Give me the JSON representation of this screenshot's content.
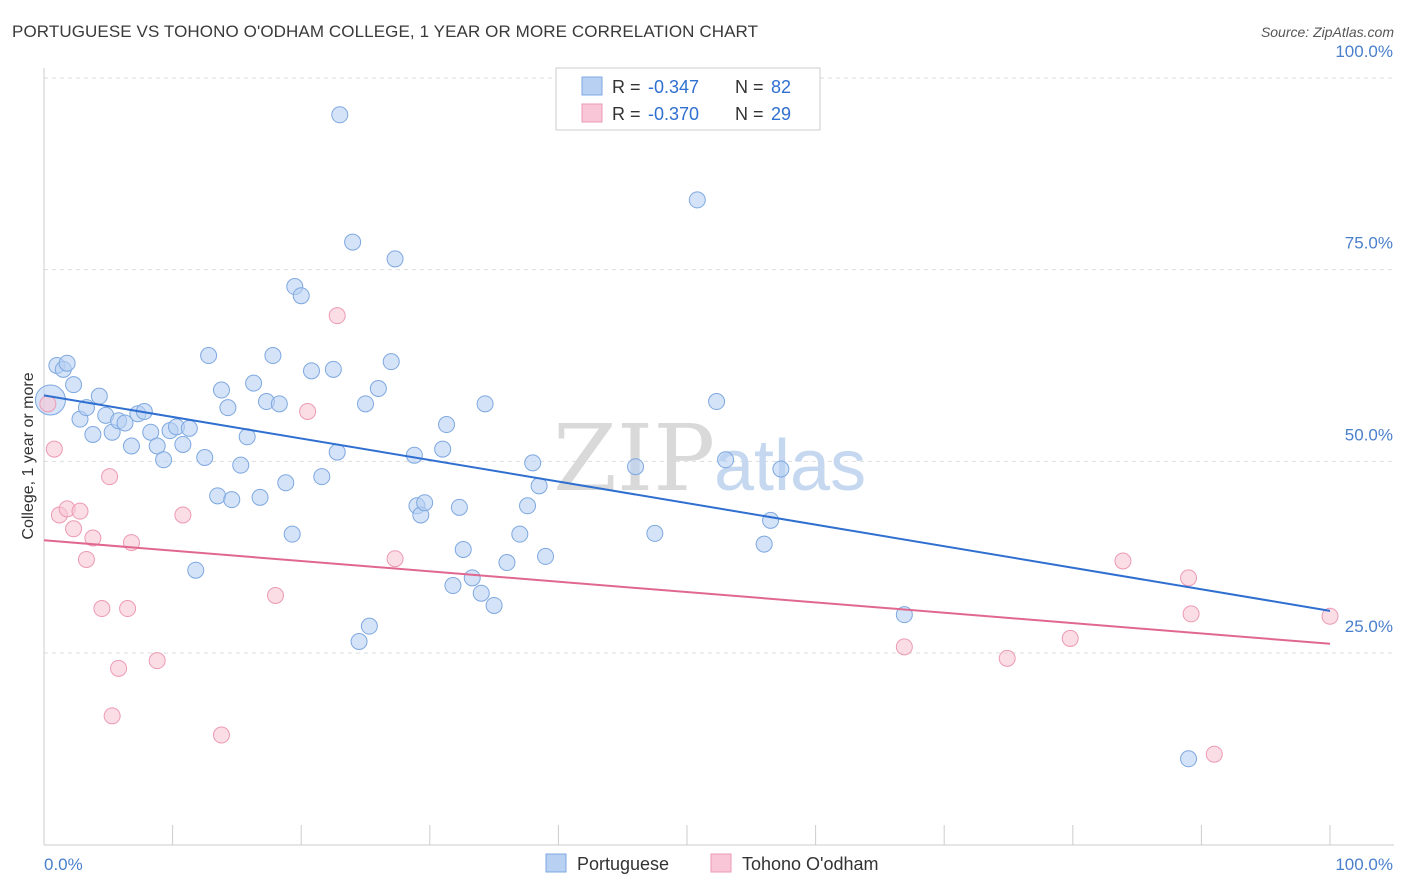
{
  "title": "PORTUGUESE VS TOHONO O'ODHAM COLLEGE, 1 YEAR OR MORE CORRELATION CHART",
  "source": "Source: ZipAtlas.com",
  "watermark": {
    "zip": "ZIP",
    "atlas": "atlas"
  },
  "colors": {
    "blue_fill": "#b8d1f3",
    "blue_stroke": "#7ea8e0",
    "blue_line": "#2f6fd0",
    "pink_fill": "#f8c6d6",
    "pink_stroke": "#ec9ab4",
    "pink_line": "#e0688f",
    "tick": "#4a7fcc",
    "grid": "#dddddd"
  },
  "legend": {
    "rows": [
      {
        "r_label": "R =",
        "r_value": "-0.347",
        "n_label": "N =",
        "n_value": "82"
      },
      {
        "r_label": "R =",
        "r_value": "-0.370",
        "n_label": "N =",
        "n_value": "29"
      }
    ]
  },
  "bottom_legend": [
    "Portuguese",
    "Tohono O'odham"
  ],
  "chart_data": {
    "type": "scatter",
    "title": "PORTUGUESE VS TOHONO O'ODHAM COLLEGE, 1 YEAR OR MORE CORRELATION CHART",
    "xlabel": "",
    "ylabel": "College, 1 year or more",
    "xlim": [
      0,
      100
    ],
    "ylim": [
      0,
      102
    ],
    "x_tick_labels": [
      "0.0%",
      "100.0%"
    ],
    "y_ticks": [
      25,
      50,
      75,
      100
    ],
    "y_tick_labels": [
      "25.0%",
      "50.0%",
      "75.0%",
      "100.0%"
    ],
    "grid": true,
    "legend_position": "top-center",
    "series": [
      {
        "name": "Portuguese",
        "trend": {
          "x": [
            0,
            100
          ],
          "y": [
            58.6,
            30.5
          ]
        },
        "points": [
          [
            0.5,
            58.0
          ],
          [
            1.0,
            62.5
          ],
          [
            1.5,
            62.0
          ],
          [
            1.8,
            62.8
          ],
          [
            2.3,
            60.0
          ],
          [
            2.8,
            55.5
          ],
          [
            3.3,
            57.0
          ],
          [
            3.8,
            53.5
          ],
          [
            4.3,
            58.5
          ],
          [
            4.8,
            56.0
          ],
          [
            5.3,
            53.8
          ],
          [
            5.8,
            55.3
          ],
          [
            6.3,
            55.0
          ],
          [
            6.8,
            52.0
          ],
          [
            7.3,
            56.2
          ],
          [
            7.8,
            56.5
          ],
          [
            8.3,
            53.8
          ],
          [
            8.8,
            52.0
          ],
          [
            9.3,
            50.2
          ],
          [
            9.8,
            54.0
          ],
          [
            10.3,
            54.5
          ],
          [
            10.8,
            52.2
          ],
          [
            11.3,
            54.3
          ],
          [
            11.8,
            35.8
          ],
          [
            12.5,
            50.5
          ],
          [
            12.8,
            63.8
          ],
          [
            13.5,
            45.5
          ],
          [
            13.8,
            59.3
          ],
          [
            14.3,
            57.0
          ],
          [
            14.6,
            45.0
          ],
          [
            15.3,
            49.5
          ],
          [
            15.8,
            53.2
          ],
          [
            16.3,
            60.2
          ],
          [
            16.8,
            45.3
          ],
          [
            17.3,
            57.8
          ],
          [
            17.8,
            63.8
          ],
          [
            18.3,
            57.5
          ],
          [
            18.8,
            47.2
          ],
          [
            19.3,
            40.5
          ],
          [
            19.5,
            72.8
          ],
          [
            20.0,
            71.6
          ],
          [
            20.8,
            61.8
          ],
          [
            21.6,
            48.0
          ],
          [
            22.5,
            62.0
          ],
          [
            22.8,
            51.2
          ],
          [
            23.0,
            95.2
          ],
          [
            24.0,
            78.6
          ],
          [
            24.5,
            26.5
          ],
          [
            25.0,
            57.5
          ],
          [
            25.3,
            28.5
          ],
          [
            26.0,
            59.5
          ],
          [
            27.0,
            63.0
          ],
          [
            27.3,
            76.4
          ],
          [
            28.8,
            50.8
          ],
          [
            29.0,
            44.2
          ],
          [
            29.3,
            43.0
          ],
          [
            29.6,
            44.6
          ],
          [
            31.0,
            51.6
          ],
          [
            31.3,
            54.8
          ],
          [
            31.8,
            33.8
          ],
          [
            32.3,
            44.0
          ],
          [
            32.6,
            38.5
          ],
          [
            33.3,
            34.8
          ],
          [
            34.0,
            32.8
          ],
          [
            34.3,
            57.5
          ],
          [
            35.0,
            31.2
          ],
          [
            36.0,
            36.8
          ],
          [
            37.0,
            40.5
          ],
          [
            37.6,
            44.2
          ],
          [
            38.0,
            49.8
          ],
          [
            38.5,
            46.8
          ],
          [
            39.0,
            37.6
          ],
          [
            46.0,
            49.3
          ],
          [
            47.5,
            40.6
          ],
          [
            50.8,
            84.1
          ],
          [
            52.3,
            57.8
          ],
          [
            53.0,
            50.2
          ],
          [
            56.0,
            39.2
          ],
          [
            56.5,
            42.3
          ],
          [
            57.3,
            49.0
          ],
          [
            66.9,
            30.0
          ],
          [
            89.0,
            11.2
          ]
        ]
      },
      {
        "name": "Tohono O'odham",
        "trend": {
          "x": [
            0,
            100
          ],
          "y": [
            39.7,
            26.2
          ]
        },
        "points": [
          [
            0.3,
            57.5
          ],
          [
            0.8,
            51.6
          ],
          [
            1.2,
            43.0
          ],
          [
            1.8,
            43.8
          ],
          [
            2.3,
            41.2
          ],
          [
            2.8,
            43.5
          ],
          [
            3.3,
            37.2
          ],
          [
            3.8,
            40.0
          ],
          [
            4.5,
            30.8
          ],
          [
            5.1,
            48.0
          ],
          [
            5.3,
            16.8
          ],
          [
            5.8,
            23.0
          ],
          [
            6.5,
            30.8
          ],
          [
            6.8,
            39.4
          ],
          [
            8.8,
            24.0
          ],
          [
            10.8,
            43.0
          ],
          [
            13.8,
            14.3
          ],
          [
            18.0,
            32.5
          ],
          [
            20.5,
            56.5
          ],
          [
            22.8,
            69.0
          ],
          [
            27.3,
            37.3
          ],
          [
            66.9,
            25.8
          ],
          [
            74.9,
            24.3
          ],
          [
            79.8,
            26.9
          ],
          [
            83.9,
            37.0
          ],
          [
            89.0,
            34.8
          ],
          [
            89.2,
            30.1
          ],
          [
            91.0,
            11.8
          ],
          [
            100.0,
            29.8
          ]
        ]
      }
    ]
  }
}
